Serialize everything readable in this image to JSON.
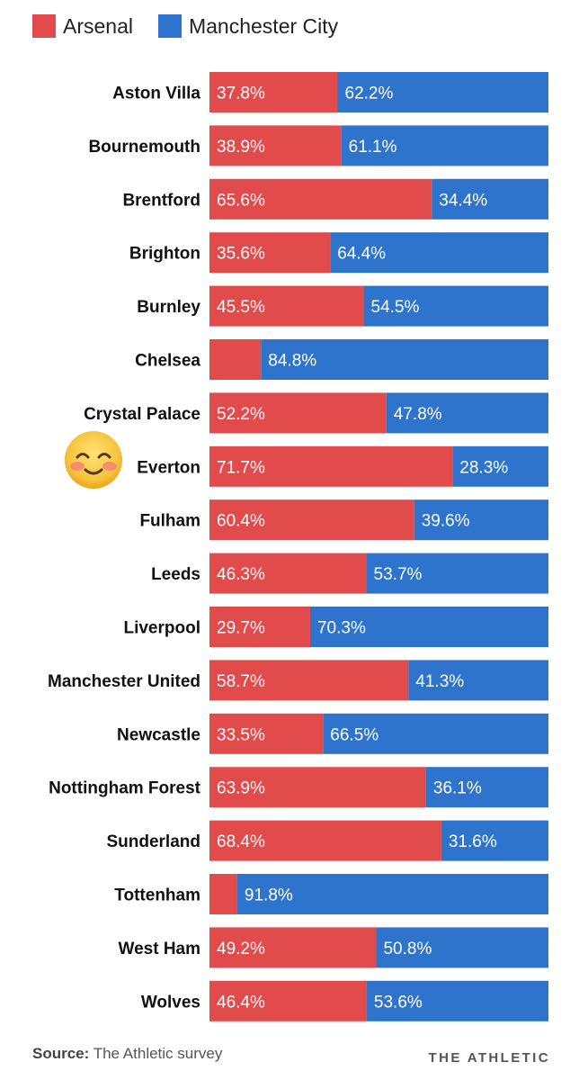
{
  "legend": {
    "items": [
      {
        "label": "Arsenal",
        "color": "#e14b4b"
      },
      {
        "label": "Manchester City",
        "color": "#2e74cc"
      }
    ]
  },
  "chart_data": {
    "type": "bar",
    "orientation": "horizontal",
    "stacked": true,
    "xlim": [
      0,
      100
    ],
    "unit": "%",
    "categories": [
      "Aston Villa",
      "Bournemouth",
      "Brentford",
      "Brighton",
      "Burnley",
      "Chelsea",
      "Crystal Palace",
      "Everton",
      "Fulham",
      "Leeds",
      "Liverpool",
      "Manchester United",
      "Newcastle",
      "Nottingham Forest",
      "Sunderland",
      "Tottenham",
      "West Ham",
      "Wolves"
    ],
    "series": [
      {
        "name": "Arsenal",
        "color": "#e14b4b",
        "values": [
          37.8,
          38.9,
          65.6,
          35.6,
          45.5,
          15.2,
          52.2,
          71.7,
          60.4,
          46.3,
          29.7,
          58.7,
          33.5,
          63.9,
          68.4,
          8.2,
          49.2,
          46.4
        ],
        "labels": [
          "37.8%",
          "38.9%",
          "65.6%",
          "35.6%",
          "45.5%",
          "",
          "52.2%",
          "71.7%",
          "60.4%",
          "46.3%",
          "29.7%",
          "58.7%",
          "33.5%",
          "63.9%",
          "68.4%",
          "",
          "49.2%",
          "46.4%"
        ]
      },
      {
        "name": "Manchester City",
        "color": "#2e74cc",
        "values": [
          62.2,
          61.1,
          34.4,
          64.4,
          54.5,
          84.8,
          47.8,
          28.3,
          39.6,
          53.7,
          70.3,
          41.3,
          66.5,
          36.1,
          31.6,
          91.8,
          50.8,
          53.6
        ],
        "labels": [
          "62.2%",
          "61.1%",
          "34.4%",
          "64.4%",
          "54.5%",
          "84.8%",
          "47.8%",
          "28.3%",
          "39.6%",
          "53.7%",
          "70.3%",
          "41.3%",
          "66.5%",
          "36.1%",
          "31.6%",
          "91.8%",
          "50.8%",
          "53.6%"
        ]
      }
    ],
    "grid": false,
    "legend_position": "top-left"
  },
  "annotation": {
    "emoji_icon": "smiling-face-icon",
    "row": "Everton"
  },
  "footer": {
    "source_label": "Source:",
    "source_text": "The Athletic survey",
    "brand": "THE ATHLETIC"
  }
}
